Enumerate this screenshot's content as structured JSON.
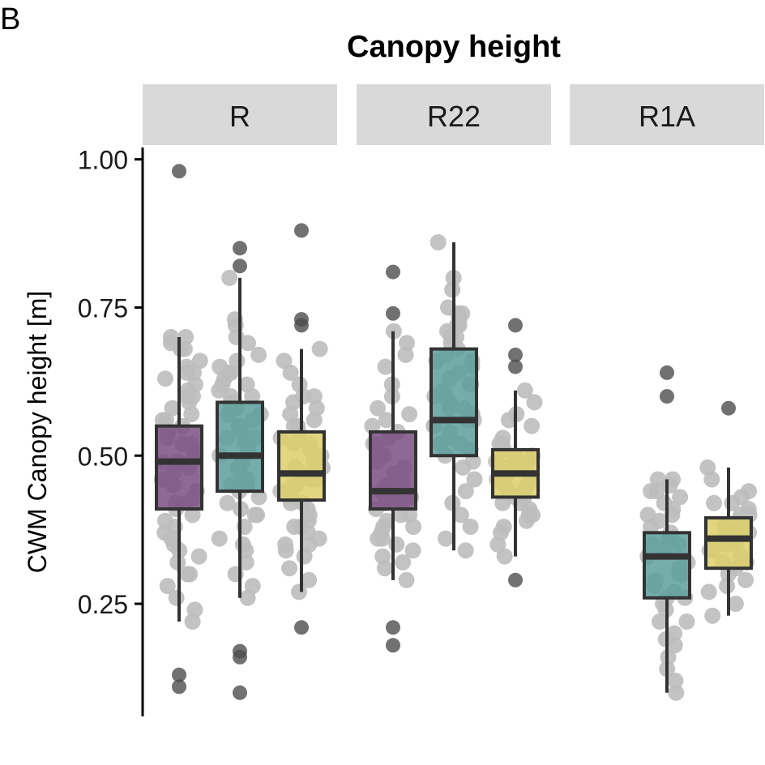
{
  "panel_label": "B",
  "chart_data": {
    "type": "box",
    "title": "Canopy height",
    "ylabel": "CWM Canopy height [m]",
    "xlabel": "",
    "ylim": [
      0.06,
      1.02
    ],
    "yticks": [
      0.25,
      0.5,
      0.75,
      1.0
    ],
    "ytick_labels": [
      "0.25",
      "0.50",
      "0.75",
      "1.00"
    ],
    "facets": [
      "R",
      "R22",
      "R1A"
    ],
    "group_colors": [
      "#7b4f82",
      "#5c9f9a",
      "#ddd06a"
    ],
    "boxes": [
      {
        "facet": 0,
        "group": 0,
        "q1": 0.41,
        "median": 0.49,
        "q3": 0.55,
        "whisker_low": 0.22,
        "whisker_high": 0.7,
        "outliers": [
          0.98,
          0.13,
          0.11
        ]
      },
      {
        "facet": 0,
        "group": 1,
        "q1": 0.44,
        "median": 0.5,
        "q3": 0.59,
        "whisker_low": 0.26,
        "whisker_high": 0.8,
        "outliers": [
          0.85,
          0.82,
          0.17,
          0.16,
          0.1
        ]
      },
      {
        "facet": 0,
        "group": 2,
        "q1": 0.425,
        "median": 0.47,
        "q3": 0.54,
        "whisker_low": 0.27,
        "whisker_high": 0.68,
        "outliers": [
          0.88,
          0.73,
          0.72,
          0.21
        ]
      },
      {
        "facet": 1,
        "group": 0,
        "q1": 0.41,
        "median": 0.44,
        "q3": 0.54,
        "whisker_low": 0.29,
        "whisker_high": 0.71,
        "outliers": [
          0.81,
          0.74,
          0.21,
          0.18
        ]
      },
      {
        "facet": 1,
        "group": 1,
        "q1": 0.5,
        "median": 0.56,
        "q3": 0.68,
        "whisker_low": 0.34,
        "whisker_high": 0.86,
        "outliers": []
      },
      {
        "facet": 1,
        "group": 2,
        "q1": 0.43,
        "median": 0.47,
        "q3": 0.51,
        "whisker_low": 0.33,
        "whisker_high": 0.61,
        "outliers": [
          0.72,
          0.67,
          0.65,
          0.29
        ]
      },
      {
        "facet": 2,
        "group": 1,
        "q1": 0.26,
        "median": 0.33,
        "q3": 0.37,
        "whisker_low": 0.1,
        "whisker_high": 0.46,
        "outliers": [
          0.64,
          0.6
        ]
      },
      {
        "facet": 2,
        "group": 2,
        "q1": 0.31,
        "median": 0.36,
        "q3": 0.395,
        "whisker_low": 0.23,
        "whisker_high": 0.48,
        "outliers": [
          0.58
        ]
      }
    ],
    "jitter_points": [
      {
        "box": 0,
        "values": [
          0.7,
          0.69,
          0.68,
          0.66,
          0.65,
          0.64,
          0.63,
          0.62,
          0.61,
          0.6,
          0.59,
          0.58,
          0.57,
          0.56,
          0.55,
          0.54,
          0.53,
          0.52,
          0.51,
          0.5,
          0.49,
          0.49,
          0.48,
          0.47,
          0.46,
          0.45,
          0.44,
          0.43,
          0.42,
          0.41,
          0.4,
          0.39,
          0.37,
          0.36,
          0.35,
          0.34,
          0.33,
          0.32,
          0.3,
          0.28,
          0.26,
          0.24,
          0.22,
          0.7,
          0.68,
          0.64,
          0.6,
          0.56,
          0.52,
          0.46,
          0.42,
          0.38,
          0.3
        ]
      },
      {
        "box": 1,
        "values": [
          0.8,
          0.73,
          0.72,
          0.7,
          0.67,
          0.66,
          0.65,
          0.64,
          0.63,
          0.62,
          0.61,
          0.6,
          0.59,
          0.58,
          0.57,
          0.56,
          0.55,
          0.54,
          0.53,
          0.52,
          0.51,
          0.5,
          0.49,
          0.48,
          0.47,
          0.46,
          0.45,
          0.44,
          0.43,
          0.42,
          0.41,
          0.4,
          0.38,
          0.36,
          0.34,
          0.32,
          0.3,
          0.28,
          0.26,
          0.64,
          0.6,
          0.57,
          0.55,
          0.53,
          0.49,
          0.45,
          0.4,
          0.35,
          0.69,
          0.62
        ]
      },
      {
        "box": 2,
        "values": [
          0.68,
          0.66,
          0.64,
          0.62,
          0.6,
          0.59,
          0.58,
          0.57,
          0.56,
          0.55,
          0.54,
          0.53,
          0.52,
          0.51,
          0.5,
          0.49,
          0.48,
          0.47,
          0.46,
          0.45,
          0.44,
          0.43,
          0.42,
          0.41,
          0.4,
          0.39,
          0.38,
          0.37,
          0.36,
          0.35,
          0.34,
          0.33,
          0.31,
          0.29,
          0.27,
          0.55,
          0.52,
          0.48,
          0.45,
          0.42,
          0.38,
          0.35,
          0.6,
          0.5,
          0.46
        ]
      },
      {
        "box": 3,
        "values": [
          0.71,
          0.69,
          0.67,
          0.65,
          0.62,
          0.6,
          0.58,
          0.57,
          0.56,
          0.55,
          0.54,
          0.53,
          0.52,
          0.51,
          0.5,
          0.49,
          0.48,
          0.47,
          0.46,
          0.45,
          0.44,
          0.44,
          0.43,
          0.42,
          0.41,
          0.4,
          0.39,
          0.38,
          0.37,
          0.36,
          0.35,
          0.34,
          0.33,
          0.32,
          0.31,
          0.29,
          0.5,
          0.47,
          0.45,
          0.43,
          0.42,
          0.4,
          0.38,
          0.36,
          0.48,
          0.52
        ]
      },
      {
        "box": 4,
        "values": [
          0.86,
          0.8,
          0.78,
          0.75,
          0.74,
          0.73,
          0.72,
          0.71,
          0.7,
          0.69,
          0.68,
          0.67,
          0.66,
          0.65,
          0.64,
          0.63,
          0.62,
          0.61,
          0.6,
          0.59,
          0.58,
          0.57,
          0.56,
          0.55,
          0.54,
          0.53,
          0.52,
          0.51,
          0.5,
          0.49,
          0.48,
          0.46,
          0.44,
          0.42,
          0.4,
          0.38,
          0.36,
          0.34,
          0.74,
          0.72,
          0.7,
          0.66,
          0.62,
          0.58,
          0.55,
          0.52,
          0.6,
          0.56
        ]
      },
      {
        "box": 5,
        "values": [
          0.61,
          0.59,
          0.57,
          0.55,
          0.53,
          0.52,
          0.51,
          0.5,
          0.49,
          0.48,
          0.47,
          0.46,
          0.45,
          0.44,
          0.43,
          0.42,
          0.41,
          0.4,
          0.39,
          0.38,
          0.37,
          0.35,
          0.33,
          0.56,
          0.5,
          0.48,
          0.46,
          0.44,
          0.42,
          0.4,
          0.52,
          0.49,
          0.45,
          0.47,
          0.43
        ]
      },
      {
        "box": 6,
        "values": [
          0.46,
          0.45,
          0.44,
          0.43,
          0.42,
          0.41,
          0.4,
          0.39,
          0.38,
          0.37,
          0.36,
          0.35,
          0.34,
          0.33,
          0.32,
          0.31,
          0.3,
          0.29,
          0.28,
          0.27,
          0.26,
          0.25,
          0.24,
          0.22,
          0.2,
          0.19,
          0.18,
          0.16,
          0.14,
          0.12,
          0.1,
          0.46,
          0.44,
          0.4,
          0.35,
          0.3,
          0.26,
          0.22
        ]
      },
      {
        "box": 7,
        "values": [
          0.48,
          0.46,
          0.44,
          0.43,
          0.42,
          0.41,
          0.4,
          0.39,
          0.38,
          0.37,
          0.36,
          0.35,
          0.34,
          0.33,
          0.32,
          0.31,
          0.3,
          0.29,
          0.28,
          0.27,
          0.25,
          0.23,
          0.42,
          0.4,
          0.38,
          0.36,
          0.34,
          0.32,
          0.35,
          0.37
        ]
      }
    ]
  }
}
